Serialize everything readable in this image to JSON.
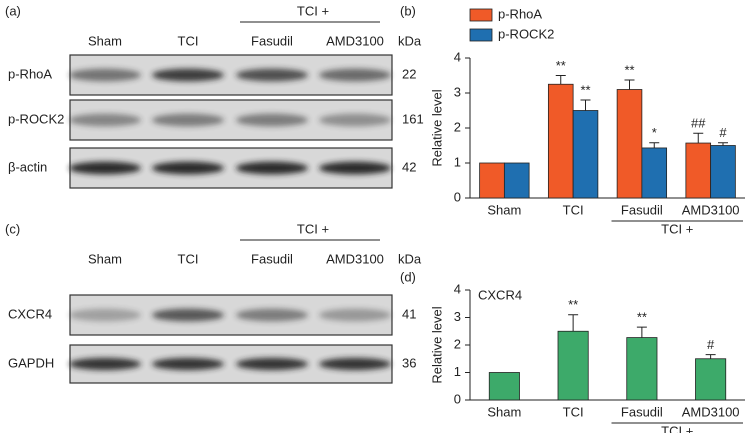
{
  "blots": [
    {
      "panel": "(a)",
      "group_label": "TCI +",
      "unit": "kDa",
      "lanes": [
        "Sham",
        "TCI",
        "Fasudil",
        "AMD3100"
      ],
      "rows": [
        {
          "label": "p-RhoA",
          "kda": 22
        },
        {
          "label": "p-ROCK2",
          "kda": 161
        },
        {
          "label": "β-actin",
          "kda": 42
        }
      ]
    },
    {
      "panel": "(c)",
      "group_label": "TCI +",
      "unit": "kDa",
      "lanes": [
        "Sham",
        "TCI",
        "Fasudil",
        "AMD3100"
      ],
      "rows": [
        {
          "label": "CXCR4",
          "kda": 41
        },
        {
          "label": "GAPDH",
          "kda": 36
        }
      ]
    }
  ],
  "chart_data": [
    {
      "type": "bar",
      "panel": "(b)",
      "ylabel": "Relative level",
      "group_label": "TCI +",
      "categories": [
        "Sham",
        "TCI",
        "Fasudil",
        "AMD3100"
      ],
      "series": [
        {
          "name": "p-RhoA",
          "color": "#f05a28",
          "values": [
            1,
            3.25,
            3.1,
            1.57
          ],
          "errors": [
            0,
            0.25,
            0.27,
            0.28
          ],
          "significance": [
            null,
            "**",
            "**",
            "##"
          ]
        },
        {
          "name": "p-ROCK2",
          "color": "#1f6fb0",
          "values": [
            1,
            2.5,
            1.43,
            1.5
          ],
          "errors": [
            0,
            0.3,
            0.15,
            0.08
          ],
          "significance": [
            null,
            "**",
            "*",
            "#"
          ]
        }
      ],
      "ylim": [
        0,
        4
      ],
      "yticks": [
        0,
        1,
        2,
        3,
        4
      ]
    },
    {
      "type": "bar",
      "panel": "(d)",
      "title": "CXCR4",
      "ylabel": "Relative level",
      "group_label": "TCI +",
      "categories": [
        "Sham",
        "TCI",
        "Fasudil",
        "AMD3100"
      ],
      "series": [
        {
          "color": "#3daa6a",
          "values": [
            1,
            2.5,
            2.27,
            1.5
          ],
          "errors": [
            0,
            0.6,
            0.38,
            0.15
          ],
          "significance": [
            null,
            "**",
            "**",
            "#"
          ]
        }
      ],
      "ylim": [
        0,
        4
      ],
      "yticks": [
        0,
        1,
        2,
        3,
        4
      ]
    }
  ]
}
